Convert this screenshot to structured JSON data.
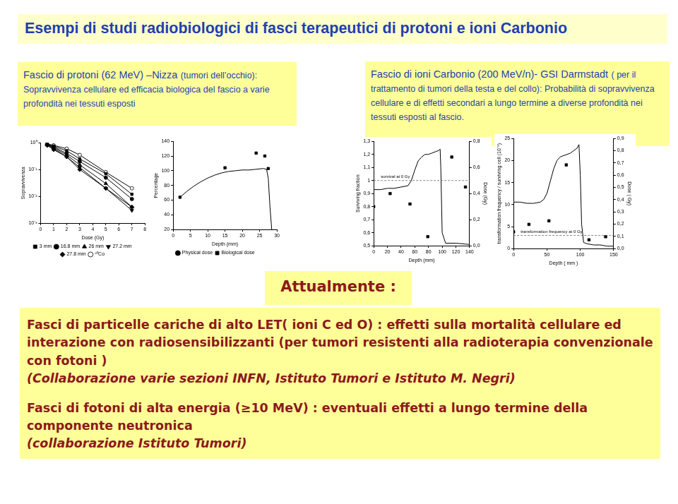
{
  "title": "Esempi di studi radiobiologici di fasci terapeutici di protoni e ioni Carbonio",
  "boxes": [
    {
      "lead": "Fascio di protoni (62 MeV) –Nizza",
      "text": "(tumori dell’occhio): Sopravvivenza cellulare ed efficacia biologica del fascio a varie profondità nei tessuti esposti"
    },
    {
      "lead": "Fascio di ioni Carbonio (200 MeV/n)- GSI Darmstadt",
      "text": "( per il trattamento di tumori della testa e del collo): Probabilità di sopravvivenza cellulare e di effetti secondari a lungo termine a diverse profondità nei tessuti esposti al fascio."
    }
  ],
  "chart_data": [
    {
      "type": "line",
      "x_label": "Dose (Gy)",
      "y_label": "Sopravvivenza",
      "xlim": [
        0,
        8
      ],
      "xticks": [
        0,
        1,
        2,
        3,
        4,
        5,
        6,
        7,
        8
      ],
      "ylim": [
        0.001,
        1
      ],
      "yticks": [
        {
          "value": 0.001,
          "label": "10⁻³"
        },
        {
          "value": 0.01,
          "label": "10⁻²"
        },
        {
          "value": 0.1,
          "label": "10⁻¹"
        },
        {
          "value": 1,
          "label": "10⁰"
        }
      ],
      "log": "y",
      "grid": false,
      "legend": "bottom",
      "series": [
        {
          "name": "3 mm",
          "color": "#000000",
          "marker": "square",
          "x": [
            0.5,
            1,
            2,
            3,
            5,
            7
          ],
          "values": [
            0.9,
            0.75,
            0.5,
            0.25,
            0.07,
            0.012
          ]
        },
        {
          "name": "16.8 mm",
          "color": "#000000",
          "marker": "circle",
          "x": [
            0.5,
            1,
            2,
            3,
            5,
            7
          ],
          "values": [
            0.85,
            0.7,
            0.4,
            0.2,
            0.05,
            0.008
          ]
        },
        {
          "name": "26 mm",
          "color": "#000000",
          "marker": "triangle",
          "x": [
            0.5,
            1,
            2,
            3,
            5,
            7
          ],
          "values": [
            0.85,
            0.65,
            0.35,
            0.15,
            0.03,
            0.004
          ]
        },
        {
          "name": "27.2 mm",
          "color": "#000000",
          "marker": "triangle_down",
          "x": [
            0.5,
            1,
            2,
            3,
            5,
            7
          ],
          "values": [
            0.8,
            0.6,
            0.3,
            0.12,
            0.02,
            0.003
          ]
        },
        {
          "name": "27.8 mm",
          "color": "#000000",
          "marker": "diamond",
          "x": [
            0.5,
            1,
            2,
            3,
            5,
            7
          ],
          "values": [
            0.8,
            0.55,
            0.3,
            0.1,
            0.02,
            0.004
          ]
        },
        {
          "name": "⁶⁰Co",
          "color": "#000000",
          "marker": "circle_open",
          "x": [
            0.5,
            1,
            2,
            3,
            5,
            7
          ],
          "values": [
            0.9,
            0.8,
            0.6,
            0.35,
            0.08,
            0.02
          ]
        }
      ]
    },
    {
      "type": "line",
      "x_label": "Depth (mm)",
      "y_label": "Percentage",
      "xlim": [
        0,
        30
      ],
      "xticks": [
        0,
        5,
        10,
        15,
        20,
        25,
        30
      ],
      "ylim": [
        20,
        140
      ],
      "yticks": [
        20,
        40,
        60,
        80,
        100,
        120,
        140
      ],
      "grid": false,
      "legend": "bottom",
      "series": [
        {
          "name": "Physical dose",
          "type": "line",
          "color": "#000000",
          "marker": "none",
          "line_style": "solid",
          "x": [
            2,
            4,
            6,
            8,
            10,
            12,
            14,
            16,
            18,
            20,
            22,
            24,
            26,
            27,
            27.5,
            28,
            28.5
          ],
          "values": [
            64,
            72,
            79,
            85,
            90,
            94,
            97,
            99,
            100,
            101,
            101,
            102,
            103,
            102,
            90,
            50,
            20
          ]
        },
        {
          "name": "Biological dose",
          "type": "scatter",
          "color": "#000000",
          "marker": "square",
          "x": [
            2,
            15,
            24,
            26.5,
            27.5
          ],
          "values": [
            64,
            104,
            124,
            120,
            103
          ]
        }
      ]
    },
    {
      "type": "line",
      "x_label": "Depth (mm)",
      "y_label": "Surviving fraction",
      "y2_label": "Dose (Gy)",
      "xlim": [
        0,
        140
      ],
      "xticks": [
        0,
        20,
        40,
        60,
        80,
        100,
        120,
        140
      ],
      "ylim": [
        0.5,
        1.3
      ],
      "yticks": [
        {
          "value": 0.5,
          "label": "0,5"
        },
        {
          "value": 0.6,
          "label": "0,6"
        },
        {
          "value": 0.7,
          "label": "0,7"
        },
        {
          "value": 0.8,
          "label": "0,8"
        },
        {
          "value": 0.9,
          "label": "0,9"
        },
        1,
        {
          "value": 1.1,
          "label": "1,1"
        },
        {
          "value": 1.2,
          "label": "1,2"
        },
        {
          "value": 1.3,
          "label": "1,3"
        }
      ],
      "y2lim": [
        0,
        0.8
      ],
      "y2ticks": [
        {
          "value": 0,
          "label": "0,0"
        },
        {
          "value": 0.2,
          "label": "0,2"
        },
        {
          "value": 0.4,
          "label": "0,4"
        },
        {
          "value": 0.6,
          "label": "0,6"
        },
        {
          "value": 0.8,
          "label": "0,8"
        }
      ],
      "grid": false,
      "annotations": [
        {
          "text": "survival at 0 Gy",
          "y": 1
        }
      ],
      "series": [
        {
          "type": "line",
          "axis": "y2",
          "color": "#000000",
          "marker": "none",
          "line_style": "solid",
          "x": [
            0,
            10,
            20,
            30,
            40,
            50,
            55,
            60,
            65,
            70,
            75,
            80,
            85,
            90,
            95,
            97,
            98,
            100,
            105,
            120,
            140
          ],
          "values": [
            0.43,
            0.43,
            0.44,
            0.44,
            0.45,
            0.46,
            0.5,
            0.58,
            0.65,
            0.68,
            0.7,
            0.7,
            0.71,
            0.72,
            0.73,
            0.74,
            0.6,
            0.1,
            0.02,
            0.02,
            0.01
          ]
        },
        {
          "type": "scatter",
          "color": "#000000",
          "marker": "square",
          "x": [
            0,
            24,
            53,
            79,
            114,
            134
          ],
          "values": [
            0.8,
            0.9,
            0.82,
            0.57,
            1.18,
            0.95
          ]
        }
      ]
    },
    {
      "type": "line",
      "x_label": "Depth ( mm )",
      "y_label": "transformation frequency / surviving cell (10⁻⁵)",
      "y2_label": "Dose ( Gy)",
      "xlim": [
        0,
        150
      ],
      "xticks": [
        0,
        50,
        100,
        150
      ],
      "ylim": [
        0,
        25
      ],
      "yticks": [
        0,
        5,
        10,
        15,
        20,
        25
      ],
      "y2lim": [
        0,
        0.9
      ],
      "y2ticks": [
        {
          "value": 0,
          "label": "0,0"
        },
        {
          "value": 0.1,
          "label": "0,1"
        },
        {
          "value": 0.2,
          "label": "0,2"
        },
        {
          "value": 0.3,
          "label": "0,3"
        },
        {
          "value": 0.4,
          "label": "0,4"
        },
        {
          "value": 0.5,
          "label": "0,5"
        },
        {
          "value": 0.6,
          "label": "0,6"
        },
        {
          "value": 0.7,
          "label": "0,7"
        },
        {
          "value": 0.8,
          "label": "0,8"
        },
        {
          "value": 0.9,
          "label": "0,9"
        }
      ],
      "grid": false,
      "annotations": [
        {
          "text": "transformation frequency at 0 Gy",
          "y": 3
        }
      ],
      "series": [
        {
          "type": "line",
          "axis": "y2",
          "color": "#000000",
          "marker": "none",
          "line_style": "solid",
          "x": [
            0,
            10,
            20,
            30,
            40,
            45,
            50,
            55,
            60,
            65,
            70,
            75,
            80,
            85,
            90,
            95,
            98,
            100,
            102,
            105,
            110,
            120,
            130,
            140,
            150
          ],
          "values": [
            0.38,
            0.38,
            0.37,
            0.37,
            0.38,
            0.4,
            0.45,
            0.55,
            0.65,
            0.72,
            0.75,
            0.76,
            0.77,
            0.78,
            0.8,
            0.82,
            0.85,
            0.6,
            0.2,
            0.05,
            0.04,
            0.03,
            0.03,
            0.02,
            0.02
          ]
        },
        {
          "type": "scatter",
          "color": "#000000",
          "marker": "square",
          "x": [
            0,
            23,
            53,
            79,
            113,
            138
          ],
          "values": [
            3.8,
            5.5,
            6.3,
            19,
            2,
            2.7
          ]
        }
      ]
    }
  ],
  "heading": "Attualmente :",
  "paragraphs": [
    {
      "text": "Fasci di particelle cariche  di alto LET( ioni C ed O)  : effetti sulla mortalità cellulare ed interazione con radiosensibilizzanti  (per tumori resistenti alla radioterapia convenzionale con fotoni )",
      "note": "(Collaborazione varie sezioni INFN, Istituto Tumori  e Istituto M. Negri)"
    },
    {
      "text": "Fasci di fotoni di alta energia (≥10 MeV) : eventuali effetti a lungo termine della componente neutronica",
      "note": "(collaborazione Istituto Tumori)"
    }
  ]
}
